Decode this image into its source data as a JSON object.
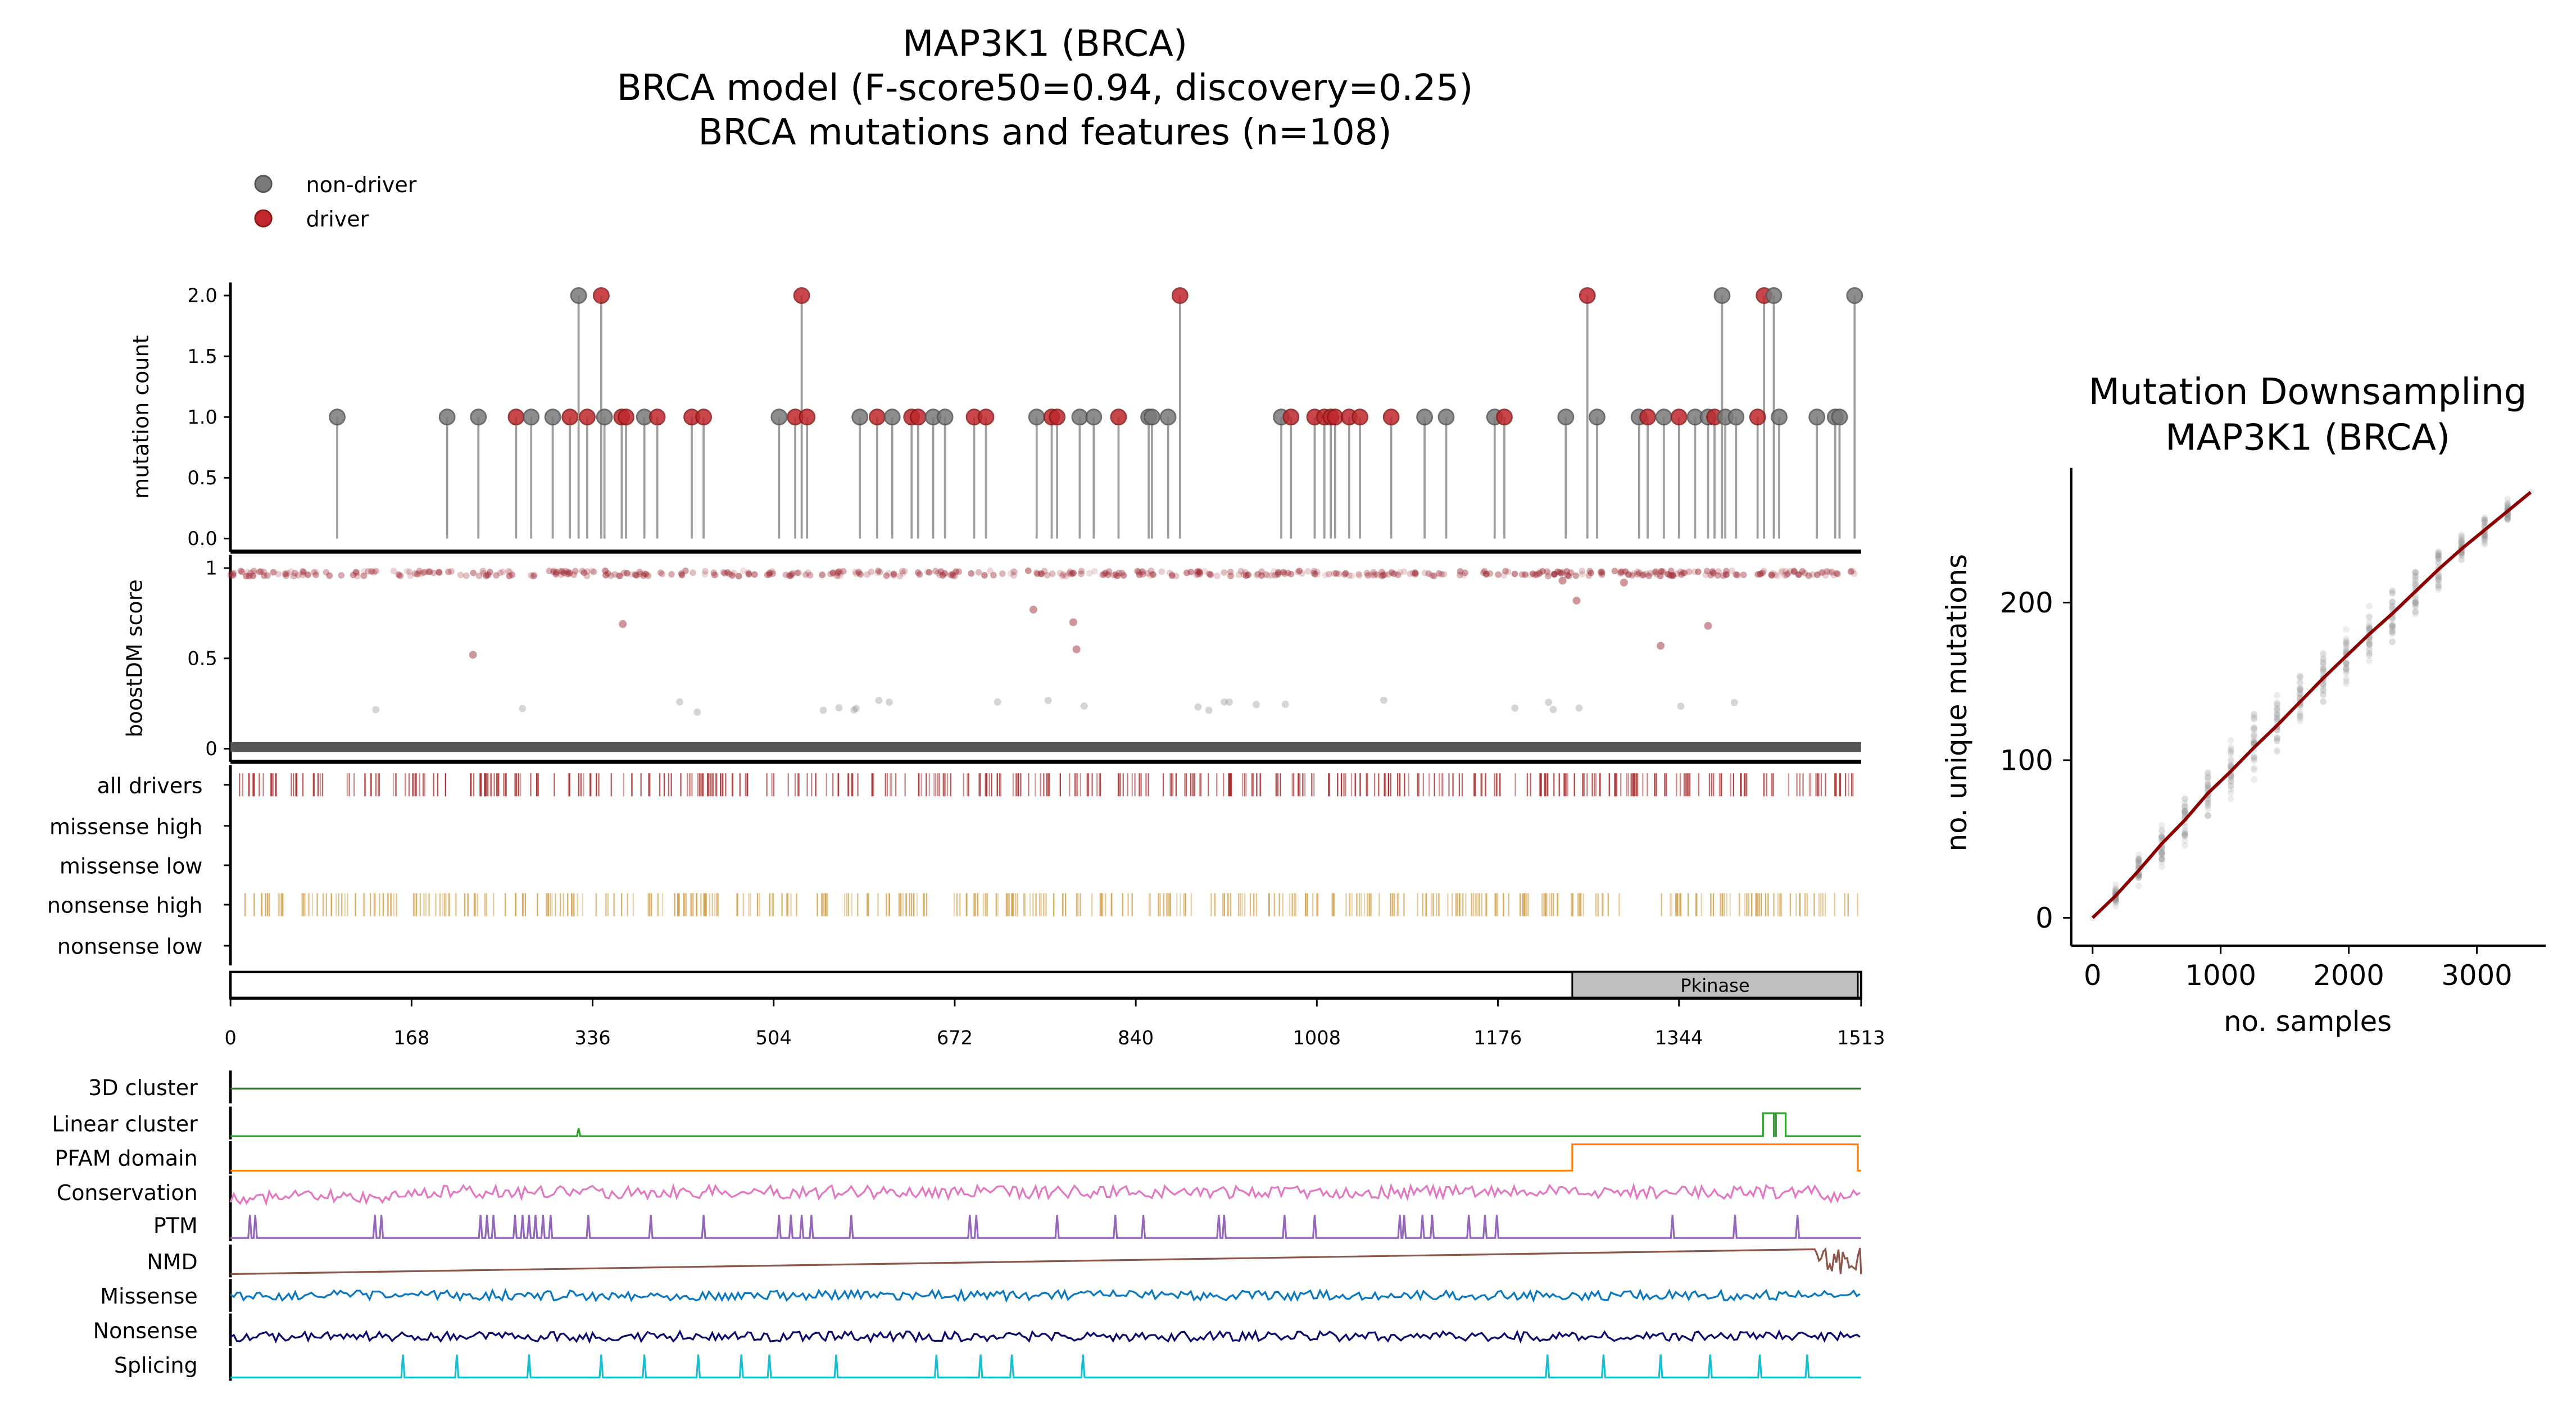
{
  "title": {
    "line1": "MAP3K1 (BRCA)",
    "line2": "BRCA model (F-score50=0.94, discovery=0.25)",
    "line3": "BRCA mutations and features (n=108)"
  },
  "legend": {
    "non_driver": "non-driver",
    "driver": "driver"
  },
  "colors": {
    "non_driver": "#7a7a7a",
    "driver": "#c0282d",
    "driver_bar": "#a52a2a",
    "nonsense_bar": "#d2a04a",
    "fit_line": "#8b0000",
    "domain_fill": "#c0c0c0"
  },
  "chart_data": [
    {
      "type": "lollipop",
      "ylabel": "mutation count",
      "ylim": [
        0,
        2.1
      ],
      "yticks": [
        "0.0",
        "0.5",
        "1.0",
        "1.5",
        "2.0"
      ],
      "xlim": [
        0,
        1513
      ],
      "mutations": [
        [
          99,
          1,
          0
        ],
        [
          201,
          1,
          0
        ],
        [
          230,
          1,
          0
        ],
        [
          265,
          1,
          1
        ],
        [
          279,
          1,
          0
        ],
        [
          299,
          1,
          0
        ],
        [
          315,
          1,
          1
        ],
        [
          323,
          2,
          0
        ],
        [
          331,
          1,
          1
        ],
        [
          344,
          2,
          1
        ],
        [
          347,
          1,
          0
        ],
        [
          363,
          1,
          1
        ],
        [
          367,
          1,
          1
        ],
        [
          384,
          1,
          0
        ],
        [
          396,
          1,
          1
        ],
        [
          428,
          1,
          1
        ],
        [
          439,
          1,
          1
        ],
        [
          509,
          1,
          0
        ],
        [
          524,
          1,
          1
        ],
        [
          530,
          2,
          1
        ],
        [
          535,
          1,
          1
        ],
        [
          584,
          1,
          0
        ],
        [
          600,
          1,
          1
        ],
        [
          614,
          1,
          0
        ],
        [
          632,
          1,
          1
        ],
        [
          638,
          1,
          1
        ],
        [
          652,
          1,
          0
        ],
        [
          663,
          1,
          0
        ],
        [
          690,
          1,
          1
        ],
        [
          701,
          1,
          1
        ],
        [
          748,
          1,
          0
        ],
        [
          762,
          1,
          1
        ],
        [
          767,
          1,
          1
        ],
        [
          788,
          1,
          0
        ],
        [
          801,
          1,
          0
        ],
        [
          824,
          1,
          1
        ],
        [
          852,
          1,
          0
        ],
        [
          855,
          1,
          0
        ],
        [
          870,
          1,
          0
        ],
        [
          881,
          2,
          1
        ],
        [
          975,
          1,
          0
        ],
        [
          984,
          1,
          1
        ],
        [
          1006,
          1,
          1
        ],
        [
          1015,
          1,
          1
        ],
        [
          1021,
          1,
          1
        ],
        [
          1025,
          1,
          1
        ],
        [
          1038,
          1,
          1
        ],
        [
          1048,
          1,
          1
        ],
        [
          1077,
          1,
          1
        ],
        [
          1108,
          1,
          0
        ],
        [
          1128,
          1,
          0
        ],
        [
          1173,
          1,
          0
        ],
        [
          1182,
          1,
          1
        ],
        [
          1239,
          1,
          0
        ],
        [
          1259,
          2,
          1
        ],
        [
          1268,
          1,
          0
        ],
        [
          1307,
          1,
          0
        ],
        [
          1315,
          1,
          1
        ],
        [
          1330,
          1,
          0
        ],
        [
          1344,
          1,
          1
        ],
        [
          1359,
          1,
          0
        ],
        [
          1371,
          1,
          0
        ],
        [
          1377,
          1,
          1
        ],
        [
          1384,
          2,
          0
        ],
        [
          1387,
          1,
          0
        ],
        [
          1397,
          1,
          0
        ],
        [
          1417,
          1,
          1
        ],
        [
          1423,
          2,
          1
        ],
        [
          1432,
          2,
          0
        ],
        [
          1437,
          1,
          0
        ],
        [
          1472,
          1,
          0
        ],
        [
          1489,
          1,
          0
        ],
        [
          1493,
          1,
          0
        ],
        [
          1507,
          2,
          0
        ]
      ],
      "mutation_fields": [
        "position",
        "count",
        "is_driver"
      ]
    },
    {
      "type": "scatter",
      "ylabel": "boostDM score",
      "yticks": [
        "0",
        "0.5",
        "1"
      ],
      "ylim": [
        0,
        1
      ],
      "notable_points": [
        [
          225,
          0.52
        ],
        [
          364,
          0.69
        ],
        [
          745,
          0.77
        ],
        [
          782,
          0.7
        ],
        [
          785,
          0.55
        ],
        [
          1249,
          0.82
        ],
        [
          1327,
          0.57
        ],
        [
          1371,
          0.68
        ],
        [
          1236,
          0.93
        ],
        [
          1293,
          0.92
        ]
      ]
    },
    {
      "type": "track_ticks",
      "rows": [
        "all drivers",
        "missense high",
        "missense low",
        "nonsense high",
        "nonsense low"
      ]
    },
    {
      "type": "domain_bar",
      "domains": [
        {
          "name": "Pkinase",
          "start": 1245,
          "end": 1510
        }
      ],
      "xticks": [
        "0",
        "168",
        "336",
        "504",
        "672",
        "840",
        "1008",
        "1176",
        "1344",
        "1513"
      ]
    },
    {
      "type": "line",
      "tracks": [
        {
          "label": "3D cluster",
          "color": "#2e6b2e"
        },
        {
          "label": "Linear cluster",
          "color": "#2ca02c",
          "spikes": [
            [
              323,
              0.3
            ]
          ],
          "boxes": [
            [
              1422,
              1432
            ],
            [
              1434,
              1443
            ]
          ]
        },
        {
          "label": "PFAM domain",
          "color": "#ff7f0e",
          "boxes": [
            [
              1245,
              1510
            ]
          ]
        },
        {
          "label": "Conservation",
          "color": "#e377c2"
        },
        {
          "label": "PTM",
          "color": "#9467bd",
          "spikes": [
            18,
            23,
            134,
            140,
            232,
            238,
            244,
            264,
            271,
            277,
            283,
            290,
            297,
            332,
            390,
            439,
            509,
            520,
            530,
            539,
            576,
            686,
            692,
            767,
            821,
            847,
            917,
            922,
            978,
            1006,
            1085,
            1089,
            1106,
            1115,
            1149,
            1164,
            1175,
            1338,
            1396,
            1454
          ]
        },
        {
          "label": "NMD",
          "color": "#8c564b",
          "noisy_range": [
            1470,
            1513
          ]
        },
        {
          "label": "Missense",
          "color": "#0a78c0"
        },
        {
          "label": "Nonsense",
          "color": "#0b0b6e"
        },
        {
          "label": "Splicing",
          "color": "#17becf",
          "spikes": [
            160,
            210,
            277,
            344,
            384,
            434,
            474,
            500,
            562,
            655,
            696,
            725,
            791,
            1222,
            1274,
            1327,
            1373,
            1419,
            1463
          ]
        }
      ]
    },
    {
      "type": "scatter",
      "title": [
        "Mutation Downsampling",
        "MAP3K1 (BRCA)"
      ],
      "xlabel": "no. samples",
      "ylabel": "no. unique mutations",
      "xticks": [
        "0",
        "1000",
        "2000",
        "3000"
      ],
      "yticks": [
        "0",
        "100",
        "200"
      ],
      "xlim": [
        -180,
        3600
      ],
      "ylim": [
        -15,
        285
      ],
      "fit_line": {
        "x": [
          0,
          180,
          360,
          540,
          720,
          900,
          1080,
          1260,
          1440,
          1620,
          1800,
          1980,
          2160,
          2340,
          2520,
          2700,
          2880,
          3060,
          3240,
          3420
        ],
        "y": [
          0,
          14,
          30,
          47,
          62,
          79,
          93,
          108,
          122,
          137,
          152,
          166,
          180,
          193,
          207,
          221,
          234,
          246,
          258,
          270
        ]
      },
      "spread": [
        0,
        8,
        12,
        15,
        18,
        20,
        22,
        24,
        22,
        20,
        22,
        22,
        22,
        20,
        18,
        16,
        14,
        12,
        10,
        0
      ]
    }
  ]
}
